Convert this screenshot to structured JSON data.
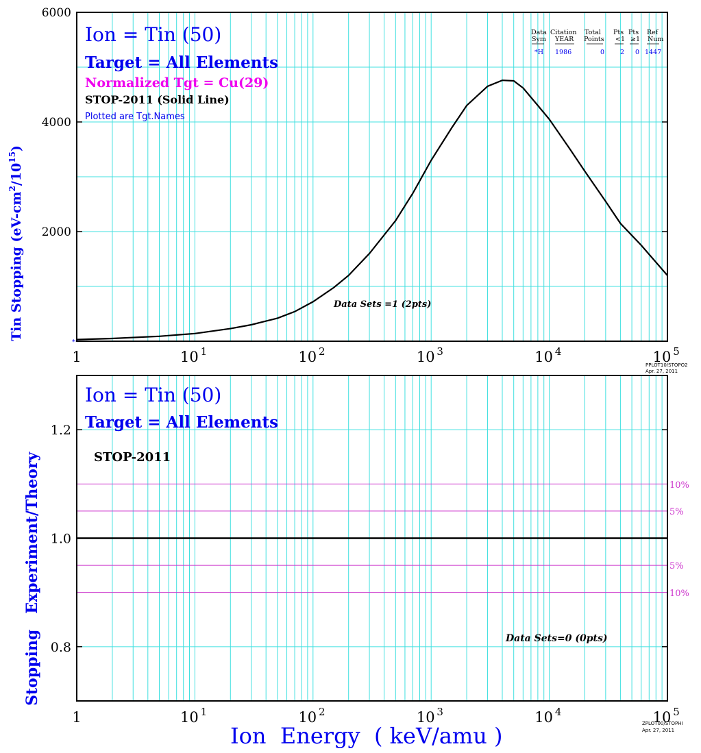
{
  "colors": {
    "grid": "#40e0e0",
    "axis": "#000000",
    "title_blue": "#0000ee",
    "magenta": "#ee00ee",
    "band": "#cc33cc",
    "curve": "#000000"
  },
  "top_panel": {
    "ion_line": "Ion = Tin (50)",
    "target_line": "Target = All Elements",
    "normalized_line": "Normalized Tgt = Cu(29)",
    "theory_line": "STOP-2011 (Solid Line)",
    "plotted_line": "Plotted are Tgt.Names",
    "ylabel_main": "Tin Stopping (eV-cm",
    "ylabel_sup1": "2",
    "ylabel_mid": "/10",
    "ylabel_sup2": "15",
    "ylabel_end": ")",
    "data_sets_label": "Data Sets =1 (2pts)",
    "footer_code": "PPLOT10/STOPO2",
    "footer_date": "Apr. 27, 2011",
    "legend_table": {
      "headers_row1": [
        "Data",
        "Citation",
        "Total",
        "Pts",
        "Pts",
        "Ref"
      ],
      "headers_row2": [
        "Sym",
        "YEAR",
        "Points",
        "<1",
        "≥1",
        "Num"
      ],
      "row": [
        "*H",
        "1986",
        "0",
        "2",
        "0",
        "1447"
      ]
    },
    "data_marker": "*H"
  },
  "bottom_panel": {
    "ion_line": "Ion = Tin (50)",
    "target_line": "Target = All Elements",
    "theory_label": "STOP-2011",
    "ylabel": "Stopping   Experiment/Theory",
    "data_sets_label": "Data Sets=0 (0pts)",
    "band_labels": [
      "10%",
      "5%",
      "5%",
      "10%"
    ],
    "footer_code": "ZPLOT00/STOPHI",
    "footer_date": "Apr. 27, 2011"
  },
  "xlabel": "Ion  Energy  ( keV/amu )",
  "x_tick_labels": [
    {
      "base": "1",
      "exp": ""
    },
    {
      "base": "10",
      "exp": "1"
    },
    {
      "base": "10",
      "exp": "2"
    },
    {
      "base": "10",
      "exp": "3"
    },
    {
      "base": "10",
      "exp": "4"
    },
    {
      "base": "10",
      "exp": "5"
    }
  ],
  "chart_data": [
    {
      "type": "line",
      "title": "Ion = Tin (50)",
      "xlabel": "Ion  Energy  ( keV/amu )",
      "ylabel": "Tin Stopping (eV-cm2/1015)",
      "x_scale": "log",
      "xlim": [
        1,
        100000
      ],
      "ylim": [
        0,
        6000
      ],
      "y_ticks": [
        2000,
        4000,
        6000
      ],
      "grid": true,
      "series": [
        {
          "name": "STOP-2011 (Solid Line)",
          "x": [
            1,
            2,
            5,
            10,
            20,
            30,
            50,
            70,
            100,
            150,
            200,
            300,
            500,
            700,
            1000,
            1500,
            2000,
            3000,
            4000,
            5000,
            6000,
            8000,
            10000,
            15000,
            20000,
            30000,
            40000,
            60000,
            100000
          ],
          "y": [
            30,
            50,
            90,
            140,
            230,
            300,
            420,
            540,
            720,
            980,
            1200,
            1600,
            2200,
            2700,
            3300,
            3900,
            4300,
            4650,
            4760,
            4750,
            4620,
            4300,
            4050,
            3500,
            3100,
            2550,
            2150,
            1750,
            1200
          ]
        },
        {
          "name": "*H",
          "x": [
            1,
            1.07
          ],
          "y": [
            0,
            0
          ]
        }
      ]
    },
    {
      "type": "line",
      "ylabel": "Stopping   Experiment/Theory",
      "xlabel": "Ion  Energy  ( keV/amu )",
      "x_scale": "log",
      "xlim": [
        1,
        100000
      ],
      "ylim": [
        0.7,
        1.3
      ],
      "y_ticks": [
        0.8,
        1.0,
        1.2
      ],
      "grid": true,
      "reference_lines": [
        1.1,
        1.05,
        1.0,
        0.95,
        0.9
      ],
      "series": []
    }
  ]
}
